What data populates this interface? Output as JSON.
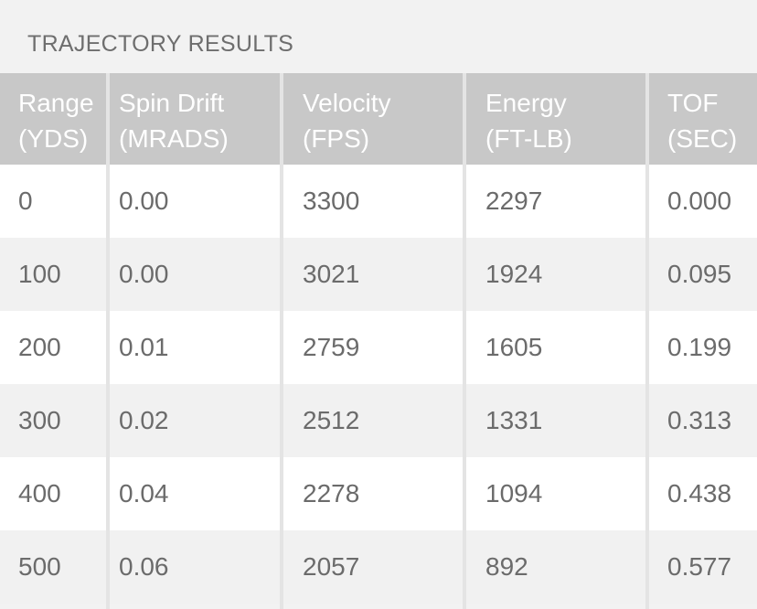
{
  "section_title": "TRAJECTORY RESULTS",
  "table": {
    "headers": [
      {
        "line1": "Range",
        "line2": "(YDS)"
      },
      {
        "line1": "Spin Drift",
        "line2": "(MRADS)"
      },
      {
        "line1": "Velocity",
        "line2": "(FPS)"
      },
      {
        "line1": "Energy",
        "line2": "(FT-LB)"
      },
      {
        "line1": "TOF",
        "line2": "(SEC)"
      }
    ],
    "rows": [
      [
        "0",
        "0.00",
        "3300",
        "2297",
        "0.000"
      ],
      [
        "100",
        "0.00",
        "3021",
        "1924",
        "0.095"
      ],
      [
        "200",
        "0.01",
        "2759",
        "1605",
        "0.199"
      ],
      [
        "300",
        "0.02",
        "2512",
        "1331",
        "0.313"
      ],
      [
        "400",
        "0.04",
        "2278",
        "1094",
        "0.438"
      ],
      [
        "500",
        "0.06",
        "2057",
        "892",
        "0.577"
      ]
    ]
  },
  "colors": {
    "header_bg": "#c8c8c8",
    "row_odd_bg": "#ffffff",
    "row_even_bg": "#f1f1f1",
    "text": "#6b6b6b"
  }
}
